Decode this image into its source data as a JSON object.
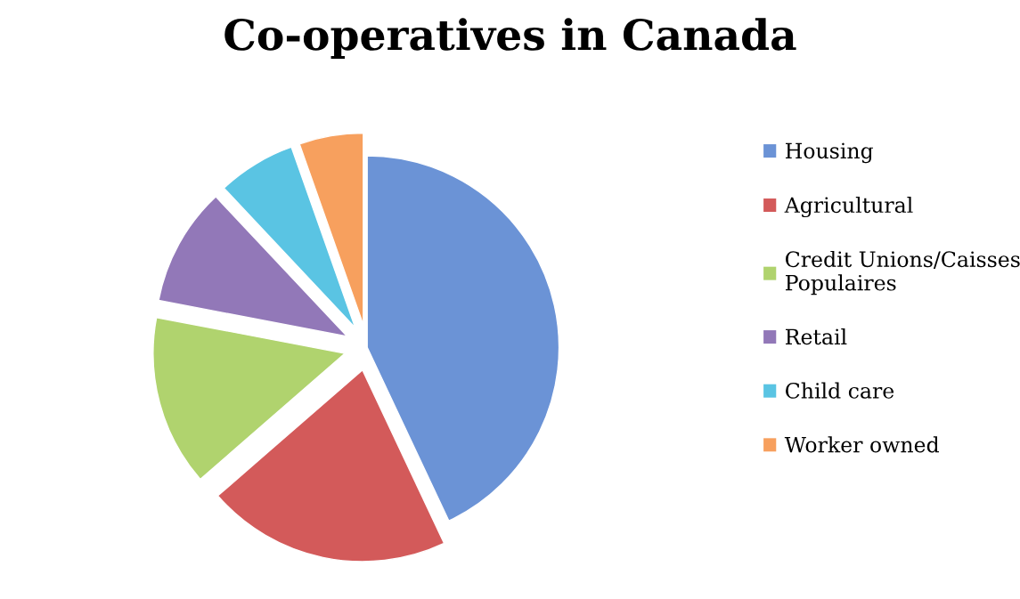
{
  "chart_data": {
    "type": "pie",
    "title": "Co-operatives in Canada",
    "categories": [
      "Housing",
      "Agricultural",
      "Credit Unions/Caisses\nPopulaires",
      "Retail",
      "Child care",
      "Worker owned"
    ],
    "values": [
      43,
      20.6,
      14.4,
      10,
      6.6,
      5.4
    ],
    "colors": [
      "#6b93d6",
      "#d35a5a",
      "#b0d36e",
      "#9278b8",
      "#5ac4e3",
      "#f7a05e"
    ],
    "legend": "right"
  }
}
